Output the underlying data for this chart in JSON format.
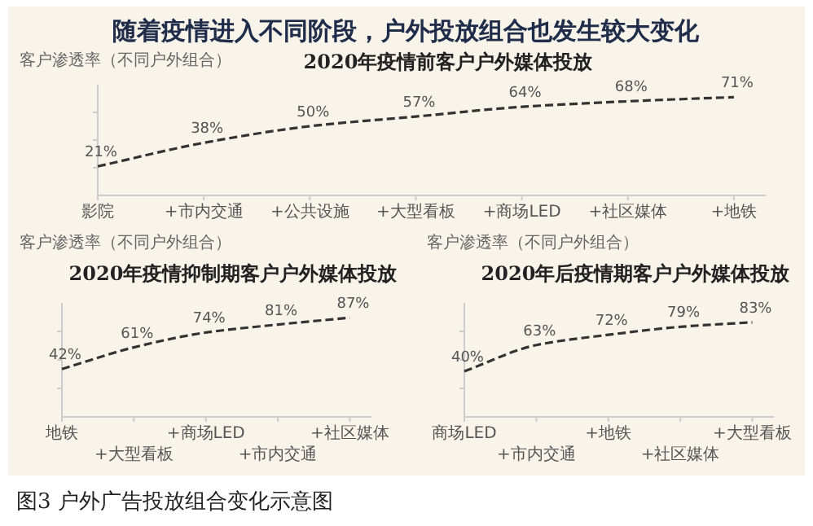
{
  "chart_data": [
    {
      "type": "other",
      "title": "随着疫情进入不同阶段，户外投放组合也发生较大变化",
      "annotations": [
        "图3 户外广告投放组合变化示意图"
      ]
    },
    {
      "type": "line",
      "title": "2020年疫情前客户户外媒体投放",
      "ylabel": "客户渗透率（不同户外组合）",
      "categories": [
        "影院",
        "+市内交通",
        "+公共设施",
        "+大型看板",
        "+商场LED",
        "+社区媒体",
        "+地铁"
      ],
      "ylim": [
        0,
        80
      ],
      "yticks": [
        {
          "value": 20,
          "label": null
        },
        {
          "value": 40,
          "label": null
        },
        {
          "value": 60,
          "label": null
        }
      ],
      "line_style": "dashed",
      "marker": "none",
      "series": [
        {
          "color": "#333333",
          "values": [
            21,
            38,
            50,
            57,
            64,
            68,
            71
          ],
          "value_labels": [
            "21%",
            "38%",
            "50%",
            "57%",
            "64%",
            "68%",
            "71%"
          ]
        }
      ]
    },
    {
      "type": "line",
      "title": "2020年疫情抑制期客户户外媒体投放",
      "ylabel": "客户渗透率（不同户外组合）",
      "categories": [
        "地铁",
        "+大型看板",
        "+商场LED",
        "+市内交通",
        "+社区媒体"
      ],
      "ylim": [
        0,
        100
      ],
      "yticks": [
        {
          "value": 25,
          "label": null
        },
        {
          "value": 50,
          "label": null
        },
        {
          "value": 75,
          "label": null
        }
      ],
      "line_style": "dashed",
      "marker": "none",
      "series": [
        {
          "color": "#333333",
          "values": [
            42,
            61,
            74,
            81,
            87
          ],
          "value_labels": [
            "42%",
            "61%",
            "74%",
            "81%",
            "87%"
          ]
        }
      ]
    },
    {
      "type": "line",
      "title": "2020年后疫情期客户户外媒体投放",
      "ylabel": "客户渗透率（不同户外组合）",
      "categories": [
        "商场LED",
        "+市内交通",
        "+地铁",
        "+社区媒体",
        "+大型看板"
      ],
      "ylim": [
        0,
        100
      ],
      "yticks": [
        {
          "value": 25,
          "label": null
        },
        {
          "value": 50,
          "label": null
        },
        {
          "value": 75,
          "label": null
        }
      ],
      "line_style": "dashed",
      "marker": "none",
      "series": [
        {
          "color": "#333333",
          "values": [
            40,
            63,
            72,
            79,
            83
          ],
          "value_labels": [
            "40%",
            "63%",
            "72%",
            "79%",
            "83%"
          ]
        }
      ]
    }
  ]
}
